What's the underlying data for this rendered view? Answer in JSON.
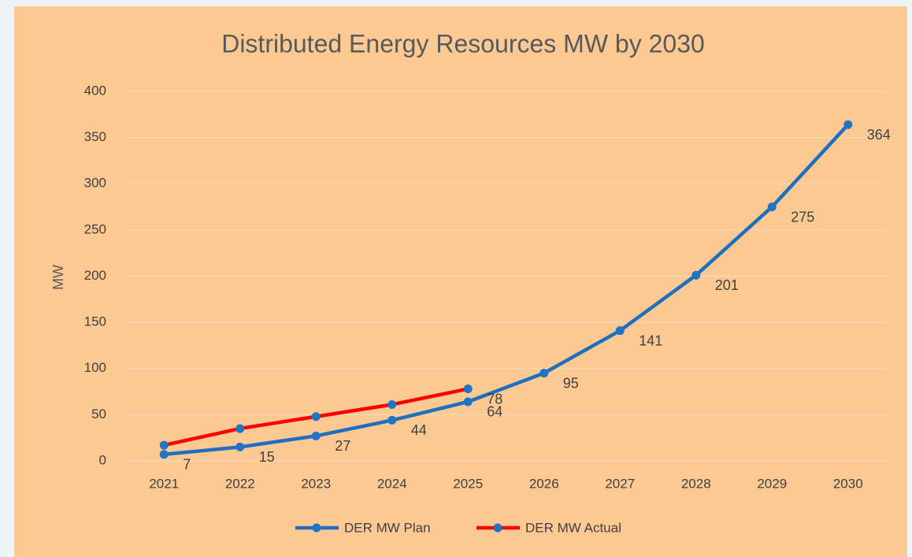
{
  "chart_data": {
    "type": "line",
    "title": "Distributed Energy Resources MW by 2030",
    "y_label": "MW",
    "categories": [
      "2021",
      "2022",
      "2023",
      "2024",
      "2025",
      "2026",
      "2027",
      "2028",
      "2029",
      "2030"
    ],
    "series": [
      {
        "name": "DER MW Plan",
        "color": "#1f6fbf",
        "marker_color": "#1f74c4",
        "values": [
          7,
          15,
          27,
          44,
          64,
          95,
          141,
          201,
          275,
          364
        ]
      },
      {
        "name": "DER MW Actual",
        "color": "#ff0000",
        "marker_color": "#1f74c4",
        "values": [
          17,
          35,
          48,
          61,
          78,
          null,
          null,
          null,
          null,
          null
        ],
        "value_labels": [
          null,
          null,
          null,
          null,
          "78",
          null,
          null,
          null,
          null,
          null
        ]
      }
    ],
    "ylim": [
      0,
      400
    ],
    "yticks": [
      0,
      50,
      100,
      150,
      200,
      250,
      300,
      350,
      400
    ],
    "grid": true,
    "legend": "bottom"
  }
}
